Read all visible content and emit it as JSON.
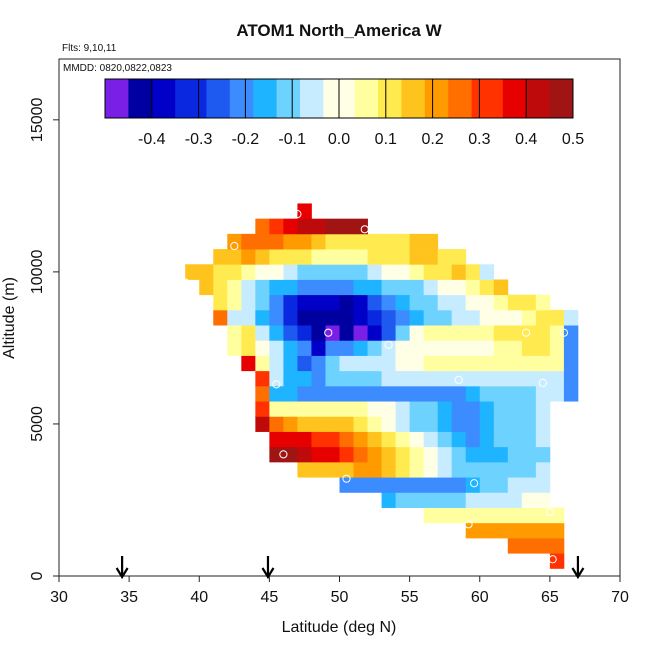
{
  "chart_data": {
    "type": "heatmap",
    "title": "ATOM1 North_America W",
    "subtitle_lines": [
      "Flts: 9,10,11",
      "MMDD: 0820,0822,0823"
    ],
    "xlabel": "Latitude (deg N)",
    "ylabel": "Altitude (m)",
    "xlim": [
      30,
      70
    ],
    "ylim": [
      0,
      17000
    ],
    "xticks": [
      30,
      35,
      40,
      45,
      50,
      55,
      60,
      65,
      70
    ],
    "xtick_labels": [
      "30",
      "35",
      "40",
      "45",
      "50",
      "55",
      "60",
      "65",
      "70"
    ],
    "yticks": [
      0,
      5000,
      10000,
      15000
    ],
    "ytick_labels": [
      "0",
      "5000",
      "10000",
      "15000"
    ],
    "cell_width_deg": 1,
    "cell_height_m": 500,
    "colorbar": {
      "vmin": -0.5,
      "vmax": 0.5,
      "ticks": [
        -0.4,
        -0.3,
        -0.2,
        -0.1,
        0.0,
        0.1,
        0.2,
        0.3,
        0.4,
        0.5
      ],
      "tick_labels": [
        "-0.4",
        "-0.3",
        "-0.2",
        "-0.1",
        "0.0",
        "0.1",
        "0.2",
        "0.3",
        "0.4",
        "0.5"
      ],
      "colors": [
        "#7A1FE6",
        "#0000A0",
        "#0000C8",
        "#0A28E0",
        "#1E5AF0",
        "#3C8CFF",
        "#1EB4FF",
        "#6ED2FF",
        "#C8ECFF",
        "#FFFFE6",
        "#FFFFA0",
        "#FFEB50",
        "#FFC31E",
        "#FF9B00",
        "#FF6E00",
        "#FF3200",
        "#E60000",
        "#BE0A0A",
        "#A01414"
      ]
    },
    "rows": [
      {
        "alt": 500,
        "lat0": 65,
        "values": [
          0.33
        ]
      },
      {
        "alt": 1000,
        "lat0": 62,
        "values": [
          0.25,
          0.25,
          0.25,
          0.25
        ]
      },
      {
        "alt": 1500,
        "lat0": 59,
        "values": [
          0.2,
          0.2,
          0.2,
          0.2,
          0.2,
          0.2,
          0.2
        ]
      },
      {
        "alt": 2000,
        "lat0": 56,
        "values": [
          0.07,
          0.07,
          0.07,
          0.07,
          0.07,
          0.07,
          0.07,
          0.07,
          0.07,
          0.07
        ]
      },
      {
        "alt": 2500,
        "lat0": 53,
        "values": [
          -0.15,
          -0.13,
          -0.13,
          -0.1,
          -0.1,
          -0.1,
          -0.05,
          -0.05,
          -0.05,
          -0.05,
          0.0,
          0.0
        ]
      },
      {
        "alt": 3000,
        "lat0": 50,
        "values": [
          -0.2,
          -0.2,
          -0.2,
          -0.2,
          -0.2,
          -0.2,
          -0.2,
          -0.2,
          -0.2,
          -0.15,
          -0.1,
          -0.1,
          -0.05,
          -0.05,
          -0.05
        ]
      },
      {
        "alt": 3500,
        "lat0": 47,
        "values": [
          0.16,
          0.16,
          0.16,
          0.16,
          0.2,
          0.2,
          0.16,
          0.1,
          0.05,
          0.0,
          -0.05,
          -0.1,
          -0.1,
          -0.12,
          -0.12,
          -0.08,
          -0.08,
          -0.05
        ]
      },
      {
        "alt": 4000,
        "lat0": 45,
        "values": [
          0.45,
          0.45,
          0.4,
          0.35,
          0.35,
          0.3,
          0.25,
          0.22,
          0.15,
          0.1,
          0.05,
          0.0,
          -0.05,
          -0.1,
          -0.15,
          -0.18,
          -0.15,
          -0.12,
          -0.1,
          -0.08
        ]
      },
      {
        "alt": 4500,
        "lat0": 45,
        "values": [
          0.35,
          0.35,
          0.35,
          0.3,
          0.3,
          0.25,
          0.22,
          0.18,
          0.12,
          0.05,
          0.0,
          -0.05,
          -0.1,
          -0.15,
          -0.2,
          -0.15,
          -0.12,
          -0.1,
          -0.08,
          -0.06
        ]
      },
      {
        "alt": 5000,
        "lat0": 44,
        "values": [
          0.42,
          0.25,
          0.2,
          0.18,
          0.15,
          0.15,
          0.15,
          0.1,
          0.05,
          0.0,
          -0.05,
          -0.1,
          -0.12,
          -0.15,
          -0.2,
          -0.2,
          -0.15,
          -0.12,
          -0.1,
          -0.08,
          -0.06
        ]
      },
      {
        "alt": 5500,
        "lat0": 44,
        "values": [
          0.3,
          0.05,
          0.05,
          0.05,
          0.05,
          0.03,
          0.03,
          0.03,
          0.0,
          -0.02,
          -0.05,
          -0.08,
          -0.1,
          -0.15,
          -0.2,
          -0.2,
          -0.18,
          -0.12,
          -0.1,
          -0.08,
          -0.06
        ]
      },
      {
        "alt": 6000,
        "lat0": 44,
        "values": [
          0.25,
          -0.15,
          -0.17,
          -0.2,
          -0.2,
          -0.2,
          -0.2,
          -0.2,
          -0.2,
          -0.2,
          -0.2,
          -0.2,
          -0.2,
          -0.2,
          -0.2,
          -0.18,
          -0.12,
          -0.1,
          -0.1,
          -0.08,
          -0.06,
          -0.05,
          -0.2
        ]
      },
      {
        "alt": 6500,
        "lat0": 44,
        "values": [
          0.3,
          -0.05,
          -0.15,
          -0.18,
          -0.2,
          -0.1,
          -0.1,
          -0.08,
          -0.08,
          -0.05,
          -0.05,
          -0.05,
          -0.05,
          -0.05,
          -0.05,
          -0.03,
          -0.05,
          -0.05,
          -0.05,
          -0.05,
          -0.05,
          -0.05,
          -0.2
        ]
      },
      {
        "alt": 7000,
        "lat0": 43,
        "values": [
          0.35,
          0.05,
          -0.05,
          -0.15,
          -0.25,
          -0.2,
          -0.1,
          -0.05,
          -0.05,
          -0.05,
          -0.03,
          -0.02,
          0.0,
          0.03,
          0.05,
          0.05,
          0.05,
          0.05,
          0.05,
          0.05,
          0.05,
          0.03,
          0.03,
          -0.2
        ]
      },
      {
        "alt": 7500,
        "lat0": 42,
        "values": [
          0.05,
          0.1,
          0.0,
          -0.05,
          -0.15,
          -0.2,
          -0.35,
          -0.2,
          -0.2,
          -0.15,
          -0.1,
          -0.05,
          0.02,
          0.02,
          0.02,
          0.02,
          0.02,
          0.02,
          0.02,
          0.03,
          0.05,
          0.08,
          0.1,
          0.05,
          -0.2
        ]
      },
      {
        "alt": 8000,
        "lat0": 42,
        "values": [
          0.05,
          0.08,
          -0.05,
          -0.15,
          -0.25,
          -0.3,
          -0.4,
          -0.45,
          -0.4,
          -0.45,
          -0.35,
          -0.25,
          -0.1,
          0.0,
          0.03,
          0.05,
          0.07,
          0.07,
          0.07,
          0.08,
          0.08,
          0.08,
          0.1,
          0.05,
          -0.2
        ]
      },
      {
        "alt": 8500,
        "lat0": 41,
        "values": [
          0.25,
          -0.05,
          -0.05,
          -0.15,
          -0.2,
          -0.3,
          -0.4,
          -0.42,
          -0.42,
          -0.4,
          -0.35,
          -0.3,
          -0.25,
          -0.2,
          -0.15,
          -0.12,
          -0.1,
          -0.05,
          -0.05,
          -0.02,
          0.0,
          0.02,
          0.05,
          0.08,
          0.1,
          -0.05
        ]
      },
      {
        "alt": 9000,
        "lat0": 41,
        "values": [
          0.08,
          0.05,
          -0.05,
          -0.12,
          -0.2,
          -0.3,
          -0.35,
          -0.38,
          -0.38,
          -0.4,
          -0.35,
          -0.25,
          -0.2,
          -0.15,
          -0.1,
          -0.1,
          -0.05,
          -0.05,
          -0.02,
          0.0,
          0.05,
          0.1,
          0.1,
          0.05
        ]
      },
      {
        "alt": 9500,
        "lat0": 40,
        "values": [
          0.15,
          0.08,
          0.05,
          -0.05,
          -0.1,
          -0.15,
          -0.15,
          -0.2,
          -0.2,
          -0.2,
          -0.2,
          -0.18,
          -0.15,
          -0.12,
          -0.1,
          -0.08,
          -0.05,
          -0.02,
          0.0,
          0.05,
          0.1,
          0.15
        ]
      },
      {
        "alt": 10000,
        "lat0": 39,
        "values": [
          0.18,
          0.15,
          0.1,
          0.08,
          0.05,
          0.0,
          -0.02,
          -0.05,
          -0.08,
          -0.08,
          -0.1,
          -0.1,
          -0.08,
          -0.05,
          -0.02,
          0.0,
          0.05,
          0.08,
          0.1,
          0.15,
          0.08,
          -0.05
        ]
      },
      {
        "alt": 10500,
        "lat0": 41,
        "values": [
          0.15,
          0.18,
          0.2,
          0.15,
          0.12,
          0.1,
          0.08,
          0.05,
          0.05,
          0.05,
          0.05,
          0.08,
          0.1,
          0.12,
          0.15,
          0.15,
          0.12,
          0.1
        ]
      },
      {
        "alt": 11000,
        "lat0": 42,
        "values": [
          0.2,
          0.25,
          0.25,
          0.25,
          0.2,
          0.2,
          0.15,
          0.12,
          0.1,
          0.08,
          0.08,
          0.1,
          0.12,
          0.15,
          0.15
        ]
      },
      {
        "alt": 11500,
        "lat0": 44,
        "values": [
          0.25,
          0.3,
          0.35,
          0.4,
          0.42,
          0.45,
          0.48,
          0.52
        ]
      },
      {
        "alt": 12000,
        "lat0": 47,
        "values": [
          0.35
        ]
      }
    ],
    "sample_points": [
      {
        "lat": 46.0,
        "alt": 4000
      },
      {
        "lat": 51.8,
        "alt": 11400
      },
      {
        "lat": 47.0,
        "alt": 11900
      },
      {
        "lat": 42.5,
        "alt": 10850
      },
      {
        "lat": 39.0,
        "alt": 9650
      },
      {
        "lat": 49.2,
        "alt": 8000
      },
      {
        "lat": 53.5,
        "alt": 7600
      },
      {
        "lat": 45.5,
        "alt": 6300
      },
      {
        "lat": 58.5,
        "alt": 6450
      },
      {
        "lat": 64.5,
        "alt": 6350
      },
      {
        "lat": 66.0,
        "alt": 8000
      },
      {
        "lat": 63.3,
        "alt": 8000
      },
      {
        "lat": 50.5,
        "alt": 3200
      },
      {
        "lat": 59.6,
        "alt": 3050
      },
      {
        "lat": 59.2,
        "alt": 1700
      },
      {
        "lat": 65.0,
        "alt": 2100
      },
      {
        "lat": 65.2,
        "alt": 550
      }
    ],
    "arrow_markers_lat": [
      34.5,
      44.9,
      67.0
    ]
  }
}
